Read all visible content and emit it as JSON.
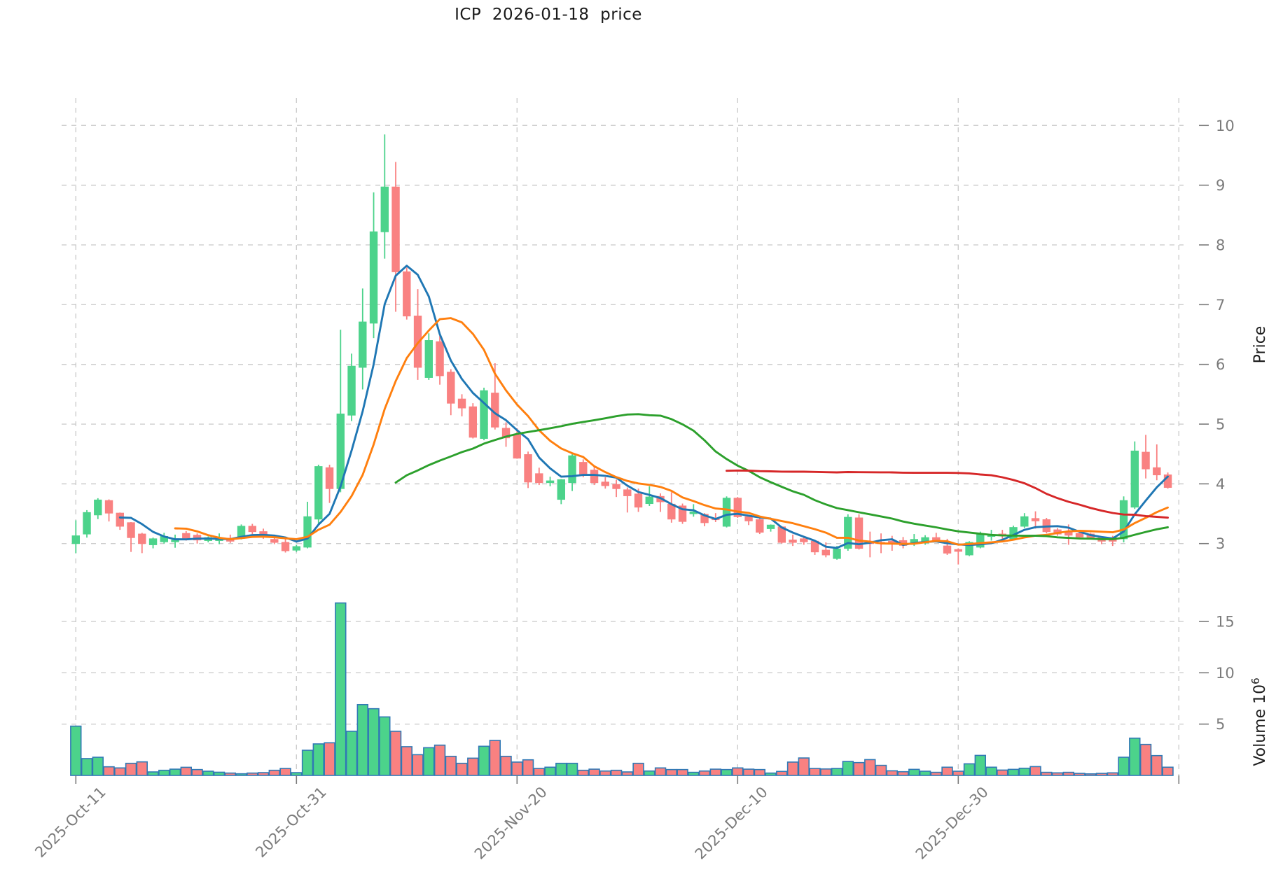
{
  "title": {
    "text": "ICP  2026-01-18  price"
  },
  "axes": {
    "price_axis_title": "Price",
    "volume_axis_title_word": "Volume",
    "volume_axis_title_base": "10",
    "volume_axis_title_exp": "6",
    "price_ticks": [
      3,
      4,
      5,
      6,
      7,
      8,
      9,
      10
    ],
    "volume_ticks": [
      5,
      10,
      15
    ],
    "x_ticks": [
      {
        "index": 0,
        "label": "2025-Oct-11"
      },
      {
        "index": 20,
        "label": "2025-Oct-31"
      },
      {
        "index": 40,
        "label": "2025-Nov-20"
      },
      {
        "index": 60,
        "label": "2025-Dec-10"
      },
      {
        "index": 80,
        "label": "2025-Dec-30"
      },
      {
        "index": 100,
        "label": ""
      }
    ]
  },
  "chart_data": {
    "type": "candlestick",
    "symbol": "ICP",
    "title": "ICP  2026-01-18  price",
    "grid": true,
    "price_ylim": [
      2.2,
      10.46
    ],
    "volume_ylim": [
      0,
      17.93
    ],
    "volume_unit": 1000000,
    "up_color": "#4CD38B",
    "down_color": "#F98181",
    "volume_bar_edge_color": "#3179B5",
    "grid_color": "#CDCDCD",
    "tick_label_color": "#7B7B7B",
    "axis_title_color": "#1F1F1F",
    "ma_windows": [
      5,
      10,
      30,
      60
    ],
    "ma_colors": [
      "#1f77b4",
      "#ff7f0e",
      "#2ca02c",
      "#d62728"
    ],
    "dates": [
      "2025-10-11",
      "2025-10-12",
      "2025-10-13",
      "2025-10-14",
      "2025-10-15",
      "2025-10-16",
      "2025-10-17",
      "2025-10-18",
      "2025-10-19",
      "2025-10-20",
      "2025-10-21",
      "2025-10-22",
      "2025-10-23",
      "2025-10-24",
      "2025-10-25",
      "2025-10-26",
      "2025-10-27",
      "2025-10-28",
      "2025-10-29",
      "2025-10-30",
      "2025-10-31",
      "2025-11-01",
      "2025-11-02",
      "2025-11-03",
      "2025-11-04",
      "2025-11-05",
      "2025-11-06",
      "2025-11-07",
      "2025-11-08",
      "2025-11-09",
      "2025-11-10",
      "2025-11-11",
      "2025-11-12",
      "2025-11-13",
      "2025-11-14",
      "2025-11-15",
      "2025-11-16",
      "2025-11-17",
      "2025-11-18",
      "2025-11-19",
      "2025-11-20",
      "2025-11-21",
      "2025-11-22",
      "2025-11-23",
      "2025-11-24",
      "2025-11-25",
      "2025-11-26",
      "2025-11-27",
      "2025-11-28",
      "2025-11-29",
      "2025-11-30",
      "2025-12-01",
      "2025-12-02",
      "2025-12-03",
      "2025-12-04",
      "2025-12-05",
      "2025-12-06",
      "2025-12-07",
      "2025-12-08",
      "2025-12-09",
      "2025-12-10",
      "2025-12-11",
      "2025-12-12",
      "2025-12-13",
      "2025-12-14",
      "2025-12-15",
      "2025-12-16",
      "2025-12-17",
      "2025-12-18",
      "2025-12-19",
      "2025-12-20",
      "2025-12-21",
      "2025-12-22",
      "2025-12-23",
      "2025-12-24",
      "2025-12-25",
      "2025-12-26",
      "2025-12-27",
      "2025-12-28",
      "2025-12-29",
      "2025-12-30",
      "2025-12-31",
      "2026-01-01",
      "2026-01-02",
      "2026-01-03",
      "2026-01-04",
      "2026-01-05",
      "2026-01-06",
      "2026-01-07",
      "2026-01-08",
      "2026-01-09",
      "2026-01-10",
      "2026-01-11",
      "2026-01-12",
      "2026-01-13",
      "2026-01-14",
      "2026-01-15",
      "2026-01-16",
      "2026-01-17",
      "2026-01-18"
    ],
    "open": [
      3.0,
      3.16,
      3.48,
      3.72,
      3.51,
      3.35,
      3.16,
      2.98,
      3.03,
      3.03,
      3.17,
      3.14,
      3.05,
      3.05,
      3.09,
      3.09,
      3.29,
      3.2,
      3.07,
      3.02,
      2.89,
      2.94,
      3.41,
      4.27,
      3.92,
      5.15,
      5.95,
      6.69,
      8.22,
      8.97,
      7.55,
      6.81,
      5.78,
      6.38,
      5.87,
      5.42,
      5.29,
      4.76,
      5.52,
      4.93,
      4.82,
      4.49,
      4.17,
      4.02,
      3.74,
      4.02,
      4.36,
      4.23,
      4.03,
      3.99,
      3.9,
      3.83,
      3.67,
      3.79,
      3.66,
      3.63,
      3.5,
      3.49,
      3.43,
      3.29,
      3.76,
      3.45,
      3.4,
      3.25,
      3.28,
      3.06,
      3.08,
      3.04,
      2.89,
      2.75,
      2.92,
      3.43,
      3.04,
      3.02,
      3.04,
      3.05,
      3.02,
      3.01,
      3.1,
      2.96,
      2.9,
      2.81,
      2.94,
      3.12,
      3.16,
      3.08,
      3.29,
      3.42,
      3.4,
      3.23,
      3.19,
      3.17,
      3.16,
      3.1,
      3.1,
      3.08,
      3.61,
      4.53,
      4.27,
      4.15
    ],
    "high": [
      3.39,
      3.56,
      3.76,
      3.74,
      3.52,
      3.36,
      3.18,
      3.1,
      3.18,
      3.15,
      3.21,
      3.17,
      3.12,
      3.17,
      3.15,
      3.32,
      3.33,
      3.25,
      3.15,
      3.1,
      2.98,
      3.7,
      4.32,
      4.32,
      6.58,
      6.18,
      7.27,
      8.88,
      9.85,
      9.39,
      7.62,
      7.26,
      6.52,
      6.48,
      5.92,
      5.5,
      5.35,
      5.61,
      6.02,
      5.03,
      4.93,
      4.54,
      4.27,
      4.12,
      4.08,
      4.52,
      4.41,
      4.29,
      4.11,
      4.07,
      3.94,
      3.92,
      3.96,
      3.84,
      3.86,
      3.67,
      3.66,
      3.51,
      3.51,
      3.79,
      3.78,
      3.47,
      3.42,
      3.32,
      3.29,
      3.15,
      3.12,
      3.06,
      3.02,
      2.96,
      3.49,
      3.49,
      3.2,
      3.17,
      3.13,
      3.11,
      3.16,
      3.14,
      3.18,
      3.08,
      2.92,
      3.04,
      3.2,
      3.23,
      3.23,
      3.3,
      3.51,
      3.54,
      3.43,
      3.26,
      3.32,
      3.2,
      3.18,
      3.12,
      3.13,
      3.79,
      4.71,
      4.82,
      4.66,
      4.19
    ],
    "low": [
      2.84,
      3.1,
      3.41,
      3.37,
      3.23,
      2.86,
      2.84,
      2.92,
      3.0,
      2.93,
      3.05,
      3.0,
      3.02,
      2.99,
      3.01,
      3.07,
      3.16,
      3.08,
      2.99,
      2.85,
      2.86,
      2.92,
      3.31,
      3.68,
      3.86,
      5.05,
      5.58,
      6.44,
      7.77,
      6.88,
      6.75,
      5.74,
      5.74,
      5.66,
      5.15,
      5.13,
      4.76,
      4.73,
      4.91,
      4.62,
      4.42,
      3.93,
      3.98,
      3.96,
      3.66,
      3.88,
      4.11,
      3.98,
      3.92,
      3.78,
      3.52,
      3.53,
      3.63,
      3.53,
      3.35,
      3.33,
      3.45,
      3.29,
      3.36,
      3.27,
      3.43,
      3.31,
      3.16,
      3.2,
      3.0,
      2.96,
      2.98,
      2.81,
      2.77,
      2.73,
      2.88,
      2.9,
      2.77,
      2.84,
      2.88,
      2.92,
      2.96,
      2.98,
      3.03,
      2.81,
      2.65,
      2.79,
      2.92,
      3.05,
      3.05,
      3.05,
      3.26,
      3.25,
      3.17,
      3.13,
      2.98,
      3.08,
      3.07,
      2.99,
      2.96,
      3.02,
      3.58,
      4.09,
      4.06,
      3.92
    ],
    "close": [
      3.13,
      3.52,
      3.73,
      3.51,
      3.29,
      3.1,
      3.0,
      3.08,
      3.12,
      3.06,
      3.09,
      3.06,
      3.1,
      3.08,
      3.04,
      3.29,
      3.2,
      3.12,
      3.02,
      2.88,
      2.95,
      3.45,
      4.29,
      3.92,
      5.17,
      5.97,
      6.71,
      8.22,
      8.97,
      7.55,
      6.81,
      5.95,
      6.4,
      5.81,
      5.35,
      5.27,
      4.78,
      5.56,
      4.95,
      4.77,
      4.43,
      4.03,
      4.02,
      4.05,
      4.07,
      4.47,
      4.14,
      4.02,
      3.97,
      3.92,
      3.8,
      3.61,
      3.78,
      3.7,
      3.41,
      3.37,
      3.53,
      3.35,
      3.4,
      3.76,
      3.45,
      3.38,
      3.19,
      3.31,
      3.02,
      3.02,
      3.03,
      2.86,
      2.81,
      2.91,
      3.44,
      2.92,
      3.0,
      3.01,
      2.99,
      2.97,
      3.07,
      3.1,
      3.05,
      2.84,
      2.87,
      3.02,
      3.16,
      3.14,
      3.13,
      3.27,
      3.45,
      3.38,
      3.2,
      3.16,
      3.14,
      3.11,
      3.1,
      3.04,
      3.04,
      3.72,
      4.55,
      4.25,
      4.15,
      3.94
    ],
    "volume_millions": [
      4.8,
      1.64,
      1.77,
      0.84,
      0.73,
      1.18,
      1.32,
      0.34,
      0.5,
      0.61,
      0.79,
      0.57,
      0.41,
      0.31,
      0.23,
      0.16,
      0.23,
      0.27,
      0.5,
      0.68,
      0.27,
      2.45,
      3.07,
      3.18,
      16.8,
      4.3,
      6.9,
      6.5,
      5.7,
      4.3,
      2.8,
      2.02,
      2.7,
      2.95,
      1.86,
      1.18,
      1.68,
      2.84,
      3.41,
      1.86,
      1.3,
      1.52,
      0.68,
      0.8,
      1.18,
      1.18,
      0.5,
      0.61,
      0.43,
      0.5,
      0.34,
      1.18,
      0.43,
      0.73,
      0.57,
      0.57,
      0.3,
      0.43,
      0.61,
      0.57,
      0.73,
      0.61,
      0.57,
      0.23,
      0.39,
      1.3,
      1.7,
      0.68,
      0.63,
      0.68,
      1.36,
      1.25,
      1.54,
      0.98,
      0.45,
      0.36,
      0.59,
      0.41,
      0.3,
      0.8,
      0.41,
      1.13,
      1.95,
      0.8,
      0.52,
      0.59,
      0.7,
      0.86,
      0.3,
      0.25,
      0.3,
      0.2,
      0.15,
      0.2,
      0.25,
      1.77,
      3.63,
      3.02,
      1.93,
      0.8
    ]
  }
}
